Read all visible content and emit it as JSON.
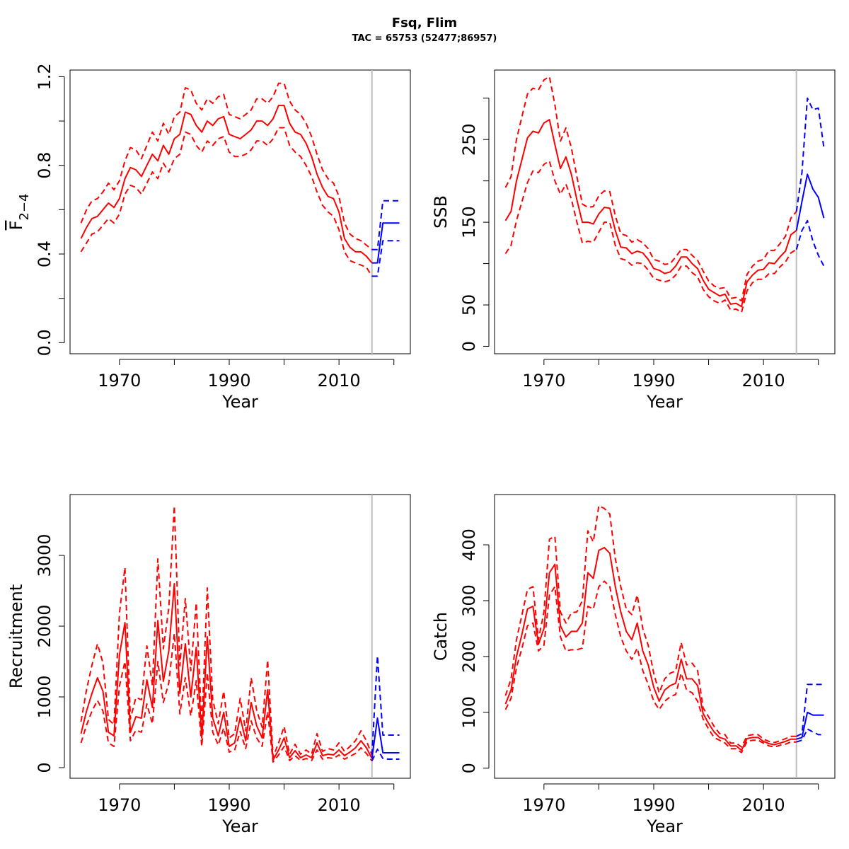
{
  "figure": {
    "title": "Fsq, Flim",
    "subtitle": "TAC = 65753 (52477;86957)"
  },
  "colors": {
    "assessment": "#ff0000",
    "forecast": "#0000ff",
    "divider": "#bebebe",
    "axis": "#000000"
  },
  "chart_data": [
    {
      "id": "F",
      "type": "line",
      "ylabel": "F2-4",
      "ylabel_display": {
        "main": "F",
        "sub": "2−4",
        "overline": true
      },
      "xlabel": "Year",
      "xlim": [
        1961,
        2023
      ],
      "ylim": [
        -0.05,
        1.23
      ],
      "yticks": [
        0.0,
        0.4,
        0.8,
        1.2
      ],
      "ytick_labels": [
        "0.0",
        "0.4",
        "0.8",
        "1.2"
      ],
      "xticks_labeled": [
        1970,
        1990,
        2010
      ],
      "xticks_minor": [
        1980,
        2000,
        2020
      ],
      "yticks_minor": [
        0.2,
        0.6,
        1.0
      ],
      "divider_year": 2016,
      "assessment": {
        "years": [
          1963,
          1964,
          1965,
          1966,
          1967,
          1968,
          1969,
          1970,
          1971,
          1972,
          1973,
          1974,
          1975,
          1976,
          1977,
          1978,
          1979,
          1980,
          1981,
          1982,
          1983,
          1984,
          1985,
          1986,
          1987,
          1988,
          1989,
          1990,
          1991,
          1992,
          1993,
          1994,
          1995,
          1996,
          1997,
          1998,
          1999,
          2000,
          2001,
          2002,
          2003,
          2004,
          2005,
          2006,
          2007,
          2008,
          2009,
          2010,
          2011,
          2012,
          2013,
          2014,
          2015,
          2016
        ],
        "estimate": [
          0.47,
          0.52,
          0.56,
          0.57,
          0.6,
          0.63,
          0.61,
          0.65,
          0.74,
          0.79,
          0.78,
          0.75,
          0.8,
          0.85,
          0.82,
          0.89,
          0.85,
          0.92,
          0.94,
          1.04,
          1.03,
          0.98,
          0.95,
          1.0,
          0.98,
          1.01,
          1.02,
          0.94,
          0.93,
          0.92,
          0.94,
          0.96,
          1.0,
          1.0,
          0.98,
          1.01,
          1.07,
          1.07,
          0.99,
          0.95,
          0.94,
          0.9,
          0.84,
          0.76,
          0.7,
          0.66,
          0.65,
          0.59,
          0.47,
          0.43,
          0.41,
          0.41,
          0.39,
          0.36
        ],
        "lower": [
          0.41,
          0.45,
          0.49,
          0.5,
          0.53,
          0.56,
          0.54,
          0.58,
          0.67,
          0.71,
          0.7,
          0.67,
          0.72,
          0.77,
          0.74,
          0.81,
          0.77,
          0.83,
          0.85,
          0.95,
          0.94,
          0.89,
          0.86,
          0.91,
          0.89,
          0.92,
          0.93,
          0.86,
          0.84,
          0.84,
          0.85,
          0.87,
          0.91,
          0.91,
          0.89,
          0.92,
          0.97,
          0.97,
          0.89,
          0.86,
          0.84,
          0.8,
          0.75,
          0.68,
          0.62,
          0.59,
          0.57,
          0.51,
          0.41,
          0.37,
          0.36,
          0.35,
          0.34,
          0.3
        ],
        "upper": [
          0.54,
          0.6,
          0.64,
          0.65,
          0.68,
          0.72,
          0.69,
          0.73,
          0.82,
          0.88,
          0.87,
          0.83,
          0.89,
          0.95,
          0.91,
          0.99,
          0.94,
          1.02,
          1.04,
          1.15,
          1.14,
          1.08,
          1.05,
          1.1,
          1.08,
          1.11,
          1.12,
          1.03,
          1.02,
          1.01,
          1.03,
          1.05,
          1.1,
          1.1,
          1.08,
          1.11,
          1.17,
          1.17,
          1.09,
          1.05,
          1.03,
          0.99,
          0.93,
          0.85,
          0.78,
          0.74,
          0.72,
          0.66,
          0.54,
          0.49,
          0.47,
          0.46,
          0.44,
          0.42
        ]
      },
      "forecast": {
        "years": [
          2016,
          2017,
          2018,
          2019,
          2020,
          2021
        ],
        "estimate": [
          0.36,
          0.36,
          0.54,
          0.54,
          0.54,
          0.54
        ],
        "lower": [
          0.3,
          0.3,
          0.46,
          0.46,
          0.46,
          0.46
        ],
        "upper": [
          0.42,
          0.42,
          0.64,
          0.64,
          0.64,
          0.64
        ]
      }
    },
    {
      "id": "SSB",
      "type": "line",
      "ylabel": "SSB",
      "xlabel": "Year",
      "xlim": [
        1961,
        2023
      ],
      "ylim": [
        -9,
        334
      ],
      "yticks": [
        0,
        50,
        150,
        250
      ],
      "ytick_labels": [
        "0",
        "50",
        "150",
        "250"
      ],
      "xticks_labeled": [
        1970,
        1990,
        2010
      ],
      "xticks_minor": [
        1980,
        2000,
        2020
      ],
      "yticks_minor": [
        100,
        200,
        300
      ],
      "divider_year": 2016,
      "assessment": {
        "years": [
          1963,
          1964,
          1965,
          1966,
          1967,
          1968,
          1969,
          1970,
          1971,
          1972,
          1973,
          1974,
          1975,
          1976,
          1977,
          1978,
          1979,
          1980,
          1981,
          1982,
          1983,
          1984,
          1985,
          1986,
          1987,
          1988,
          1989,
          1990,
          1991,
          1992,
          1993,
          1994,
          1995,
          1996,
          1997,
          1998,
          1999,
          2000,
          2001,
          2002,
          2003,
          2004,
          2005,
          2006,
          2007,
          2008,
          2009,
          2010,
          2011,
          2012,
          2013,
          2014,
          2015,
          2016
        ],
        "estimate": [
          152,
          163,
          200,
          226,
          252,
          260,
          258,
          270,
          274,
          244,
          215,
          229,
          208,
          177,
          150,
          150,
          148,
          160,
          168,
          167,
          140,
          120,
          119,
          112,
          115,
          113,
          105,
          94,
          92,
          88,
          90,
          97,
          108,
          108,
          100,
          94,
          80,
          69,
          65,
          61,
          63,
          51,
          52,
          48,
          78,
          86,
          92,
          93,
          101,
          100,
          108,
          115,
          135,
          140
        ],
        "lower": [
          112,
          122,
          152,
          175,
          198,
          212,
          210,
          220,
          224,
          200,
          184,
          196,
          178,
          150,
          125,
          127,
          126,
          138,
          150,
          150,
          122,
          106,
          104,
          98,
          101,
          100,
          92,
          82,
          80,
          78,
          80,
          86,
          97,
          97,
          89,
          84,
          69,
          60,
          55,
          52,
          56,
          44,
          45,
          41,
          67,
          77,
          81,
          81,
          88,
          88,
          96,
          102,
          113,
          117
        ],
        "upper": [
          192,
          205,
          250,
          278,
          305,
          312,
          310,
          322,
          326,
          292,
          248,
          264,
          240,
          205,
          172,
          168,
          169,
          182,
          188,
          187,
          158,
          136,
          134,
          126,
          129,
          125,
          118,
          105,
          103,
          99,
          100,
          108,
          117,
          117,
          110,
          104,
          91,
          79,
          73,
          70,
          71,
          58,
          59,
          55,
          87,
          97,
          103,
          105,
          116,
          116,
          124,
          133,
          155,
          163
        ]
      },
      "forecast": {
        "years": [
          2016,
          2017,
          2018,
          2019,
          2020,
          2021
        ],
        "estimate": [
          140,
          175,
          208,
          190,
          180,
          155
        ],
        "lower": [
          117,
          140,
          152,
          127,
          110,
          97
        ],
        "upper": [
          163,
          210,
          300,
          286,
          288,
          240
        ]
      }
    },
    {
      "id": "Recruitment",
      "type": "line",
      "ylabel": "Recruitment",
      "xlabel": "Year",
      "xlim": [
        1961,
        2023
      ],
      "ylim": [
        -150,
        3860
      ],
      "yticks": [
        0,
        1000,
        2000,
        3000
      ],
      "ytick_labels": [
        "0",
        "1000",
        "2000",
        "3000"
      ],
      "xticks_labeled": [
        1970,
        1990,
        2010
      ],
      "xticks_minor": [
        1980,
        2000,
        2020
      ],
      "yticks_minor": [],
      "divider_year": 2016,
      "assessment": {
        "years": [
          1963,
          1964,
          1965,
          1966,
          1967,
          1968,
          1969,
          1970,
          1971,
          1972,
          1973,
          1974,
          1975,
          1976,
          1977,
          1978,
          1979,
          1980,
          1981,
          1982,
          1983,
          1984,
          1985,
          1986,
          1987,
          1988,
          1989,
          1990,
          1991,
          1992,
          1993,
          1994,
          1995,
          1996,
          1997,
          1998,
          1999,
          2000,
          2001,
          2002,
          2003,
          2004,
          2005,
          2006,
          2007,
          2008,
          2009,
          2010,
          2011,
          2012,
          2013,
          2014,
          2015,
          2016
        ],
        "estimate": [
          480,
          800,
          1050,
          1270,
          1080,
          500,
          450,
          1590,
          2050,
          500,
          720,
          700,
          1240,
          850,
          2080,
          1220,
          1650,
          2600,
          1050,
          1750,
          1000,
          1700,
          420,
          1850,
          700,
          450,
          780,
          300,
          350,
          710,
          380,
          920,
          590,
          420,
          1100,
          110,
          250,
          420,
          140,
          240,
          140,
          180,
          140,
          350,
          170,
          190,
          180,
          250,
          170,
          220,
          280,
          380,
          280,
          130
        ],
        "lower": [
          350,
          600,
          800,
          950,
          800,
          350,
          300,
          1150,
          1500,
          380,
          530,
          500,
          900,
          620,
          1500,
          920,
          1200,
          1900,
          760,
          1270,
          730,
          1230,
          300,
          1340,
          500,
          320,
          560,
          220,
          250,
          510,
          270,
          660,
          420,
          300,
          790,
          80,
          180,
          300,
          100,
          170,
          100,
          130,
          100,
          250,
          120,
          140,
          130,
          180,
          120,
          160,
          200,
          280,
          200,
          95
        ],
        "upper": [
          650,
          1100,
          1450,
          1750,
          1480,
          680,
          610,
          2180,
          2830,
          690,
          990,
          960,
          1720,
          1160,
          2950,
          1680,
          2260,
          3700,
          1440,
          2390,
          1370,
          2330,
          580,
          2540,
          960,
          620,
          1080,
          420,
          480,
          980,
          520,
          1270,
          810,
          570,
          1520,
          150,
          350,
          580,
          190,
          330,
          190,
          250,
          190,
          480,
          230,
          270,
          250,
          350,
          230,
          300,
          380,
          520,
          380,
          180
        ]
      },
      "forecast": {
        "years": [
          2016,
          2017,
          2018,
          2019,
          2020,
          2021
        ],
        "estimate": [
          130,
          700,
          210,
          210,
          210,
          210
        ],
        "lower": [
          95,
          260,
          130,
          120,
          120,
          120
        ],
        "upper": [
          180,
          1580,
          460,
          460,
          460,
          460
        ]
      }
    },
    {
      "id": "Catch",
      "type": "line",
      "ylabel": "Catch",
      "xlabel": "Year",
      "xlim": [
        1961,
        2023
      ],
      "ylim": [
        -18,
        490
      ],
      "yticks": [
        0,
        100,
        200,
        300,
        400
      ],
      "ytick_labels": [
        "0",
        "100",
        "200",
        "300",
        "400"
      ],
      "xticks_labeled": [
        1970,
        1990,
        2010
      ],
      "xticks_minor": [
        1980,
        2000,
        2020
      ],
      "yticks_minor": [],
      "divider_year": 2016,
      "assessment": {
        "years": [
          1963,
          1964,
          1965,
          1966,
          1967,
          1968,
          1969,
          1970,
          1971,
          1972,
          1973,
          1974,
          1975,
          1976,
          1977,
          1978,
          1979,
          1980,
          1981,
          1982,
          1983,
          1984,
          1985,
          1986,
          1987,
          1988,
          1989,
          1990,
          1991,
          1992,
          1993,
          1994,
          1995,
          1996,
          1997,
          1998,
          1999,
          2000,
          2001,
          2002,
          2003,
          2004,
          2005,
          2006,
          2007,
          2008,
          2009,
          2010,
          2011,
          2012,
          2013,
          2014,
          2015,
          2016
        ],
        "estimate": [
          115,
          140,
          200,
          240,
          285,
          290,
          222,
          250,
          350,
          365,
          255,
          235,
          245,
          245,
          260,
          350,
          340,
          390,
          395,
          385,
          325,
          280,
          245,
          230,
          260,
          210,
          185,
          145,
          120,
          140,
          148,
          152,
          195,
          160,
          160,
          148,
          98,
          80,
          65,
          55,
          52,
          40,
          40,
          32,
          53,
          55,
          55,
          48,
          44,
          42,
          45,
          48,
          52,
          52
        ],
        "lower": [
          105,
          125,
          180,
          215,
          255,
          260,
          210,
          220,
          310,
          325,
          235,
          210,
          212,
          212,
          215,
          290,
          285,
          325,
          335,
          325,
          275,
          235,
          210,
          195,
          215,
          175,
          150,
          120,
          105,
          120,
          128,
          132,
          170,
          140,
          135,
          120,
          88,
          70,
          55,
          50,
          45,
          35,
          35,
          28,
          48,
          50,
          50,
          45,
          40,
          38,
          41,
          43,
          47,
          47
        ],
        "upper": [
          130,
          160,
          230,
          275,
          320,
          325,
          230,
          280,
          410,
          415,
          280,
          260,
          278,
          280,
          300,
          425,
          405,
          470,
          465,
          455,
          375,
          325,
          285,
          275,
          310,
          250,
          220,
          170,
          135,
          160,
          170,
          174,
          225,
          185,
          188,
          175,
          108,
          92,
          75,
          62,
          60,
          45,
          45,
          38,
          58,
          60,
          60,
          52,
          48,
          46,
          49,
          53,
          57,
          57
        ]
      },
      "forecast": {
        "years": [
          2016,
          2017,
          2018,
          2019,
          2020,
          2021
        ],
        "estimate": [
          52,
          55,
          100,
          95,
          95,
          95
        ],
        "lower": [
          47,
          50,
          70,
          65,
          60,
          60
        ],
        "upper": [
          57,
          62,
          150,
          150,
          150,
          150
        ]
      }
    }
  ]
}
